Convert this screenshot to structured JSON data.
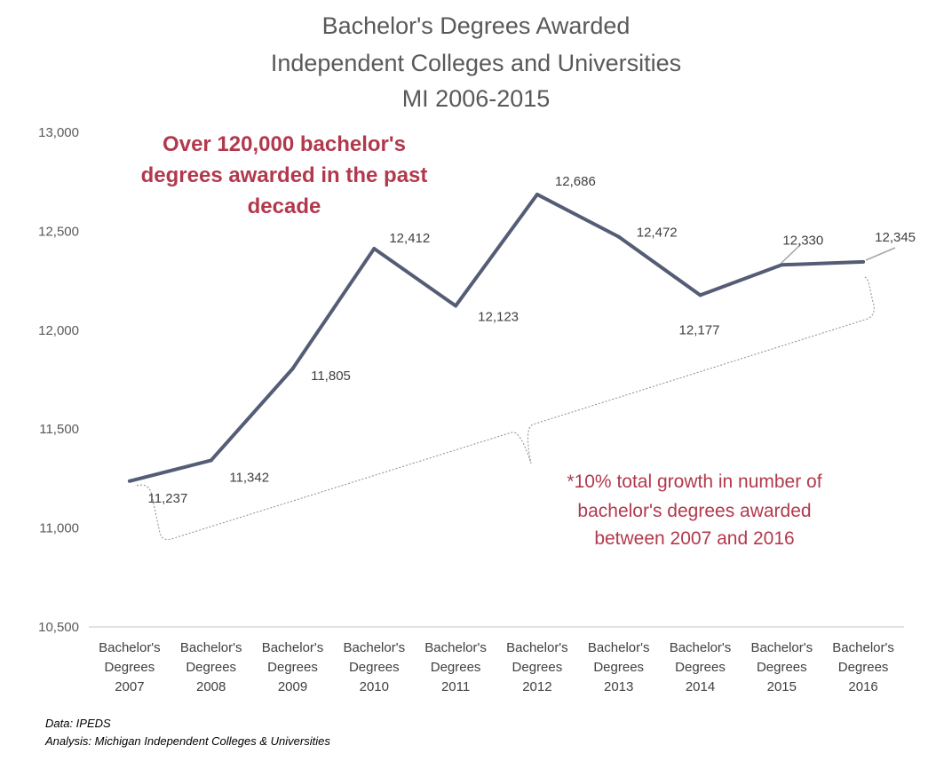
{
  "chart_data": {
    "type": "line",
    "title_lines": [
      "Bachelor's Degrees Awarded",
      "Independent  Colleges and Universities",
      "MI 2006-2015"
    ],
    "categories": [
      [
        "Bachelor's",
        "Degrees",
        "2007"
      ],
      [
        "Bachelor's",
        "Degrees",
        "2008"
      ],
      [
        "Bachelor's",
        "Degrees",
        "2009"
      ],
      [
        "Bachelor's",
        "Degrees",
        "2010"
      ],
      [
        "Bachelor's",
        "Degrees",
        "2011"
      ],
      [
        "Bachelor's",
        "Degrees",
        "2012"
      ],
      [
        "Bachelor's",
        "Degrees",
        "2013"
      ],
      [
        "Bachelor's",
        "Degrees",
        "2014"
      ],
      [
        "Bachelor's",
        "Degrees",
        "2015"
      ],
      [
        "Bachelor's",
        "Degrees",
        "2016"
      ]
    ],
    "values": [
      11237,
      11342,
      11805,
      12412,
      12123,
      12686,
      12472,
      12177,
      12330,
      12345
    ],
    "data_labels": [
      "11,237",
      "11,342",
      "11,805",
      "12,412",
      "12,123",
      "12,686",
      "12,472",
      "12,177",
      "12,330",
      "12,345"
    ],
    "ylim": [
      10500,
      13000
    ],
    "yticks": [
      10500,
      11000,
      11500,
      12000,
      12500,
      13000
    ],
    "ytick_labels": [
      "10,500",
      "11,000",
      "11,500",
      "12,000",
      "12,500",
      "13,000"
    ],
    "grid": false,
    "legend": "none",
    "line_color": "#555c75",
    "annotations": [
      [
        "Over 120,000 bachelor's",
        "degrees awarded in the past",
        "decade"
      ],
      [
        "*10% total growth in number of",
        "bachelor's degrees awarded",
        "between 2007 and 2016"
      ]
    ],
    "annotation_color": "#b2394d"
  },
  "source_lines": [
    "Data: IPEDS",
    "Analysis: Michigan Independent Colleges & Universities"
  ]
}
